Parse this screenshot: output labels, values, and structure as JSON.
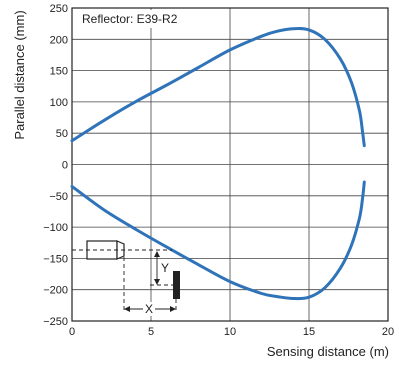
{
  "chart_data": {
    "type": "line",
    "title": "",
    "xlabel": "Sensing distance (m)",
    "ylabel": "Parallel distance (mm)",
    "xlim": [
      0,
      20
    ],
    "ylim": [
      -250,
      250
    ],
    "xticks": [
      0,
      5,
      10,
      15,
      20
    ],
    "yticks": [
      250,
      200,
      150,
      100,
      50,
      0,
      -50,
      -100,
      -150,
      -200,
      -250
    ],
    "grid": true,
    "annotation": "Reflector: E39-R2",
    "diagram_labels": {
      "y": "Y",
      "x": "X"
    },
    "colors": {
      "curve": "#2f73b8",
      "grid": "#444444",
      "text": "#222222"
    },
    "series": [
      {
        "name": "",
        "x": [
          0,
          2,
          4,
          6,
          8,
          10,
          12,
          13,
          14,
          15,
          16,
          17,
          17.7,
          18.2,
          18.4,
          18.5
        ],
        "y": [
          38,
          70,
          100,
          127,
          155,
          183,
          205,
          213,
          217,
          215,
          200,
          168,
          130,
          85,
          50,
          30
        ]
      },
      {
        "name": "",
        "x": [
          0,
          2,
          4,
          6,
          8,
          10,
          12,
          13,
          14,
          15,
          16,
          17,
          17.7,
          18.2,
          18.4,
          18.5
        ],
        "y": [
          -35,
          -72,
          -103,
          -132,
          -160,
          -187,
          -206,
          -211,
          -214,
          -212,
          -197,
          -165,
          -128,
          -85,
          -52,
          -28
        ]
      }
    ]
  }
}
